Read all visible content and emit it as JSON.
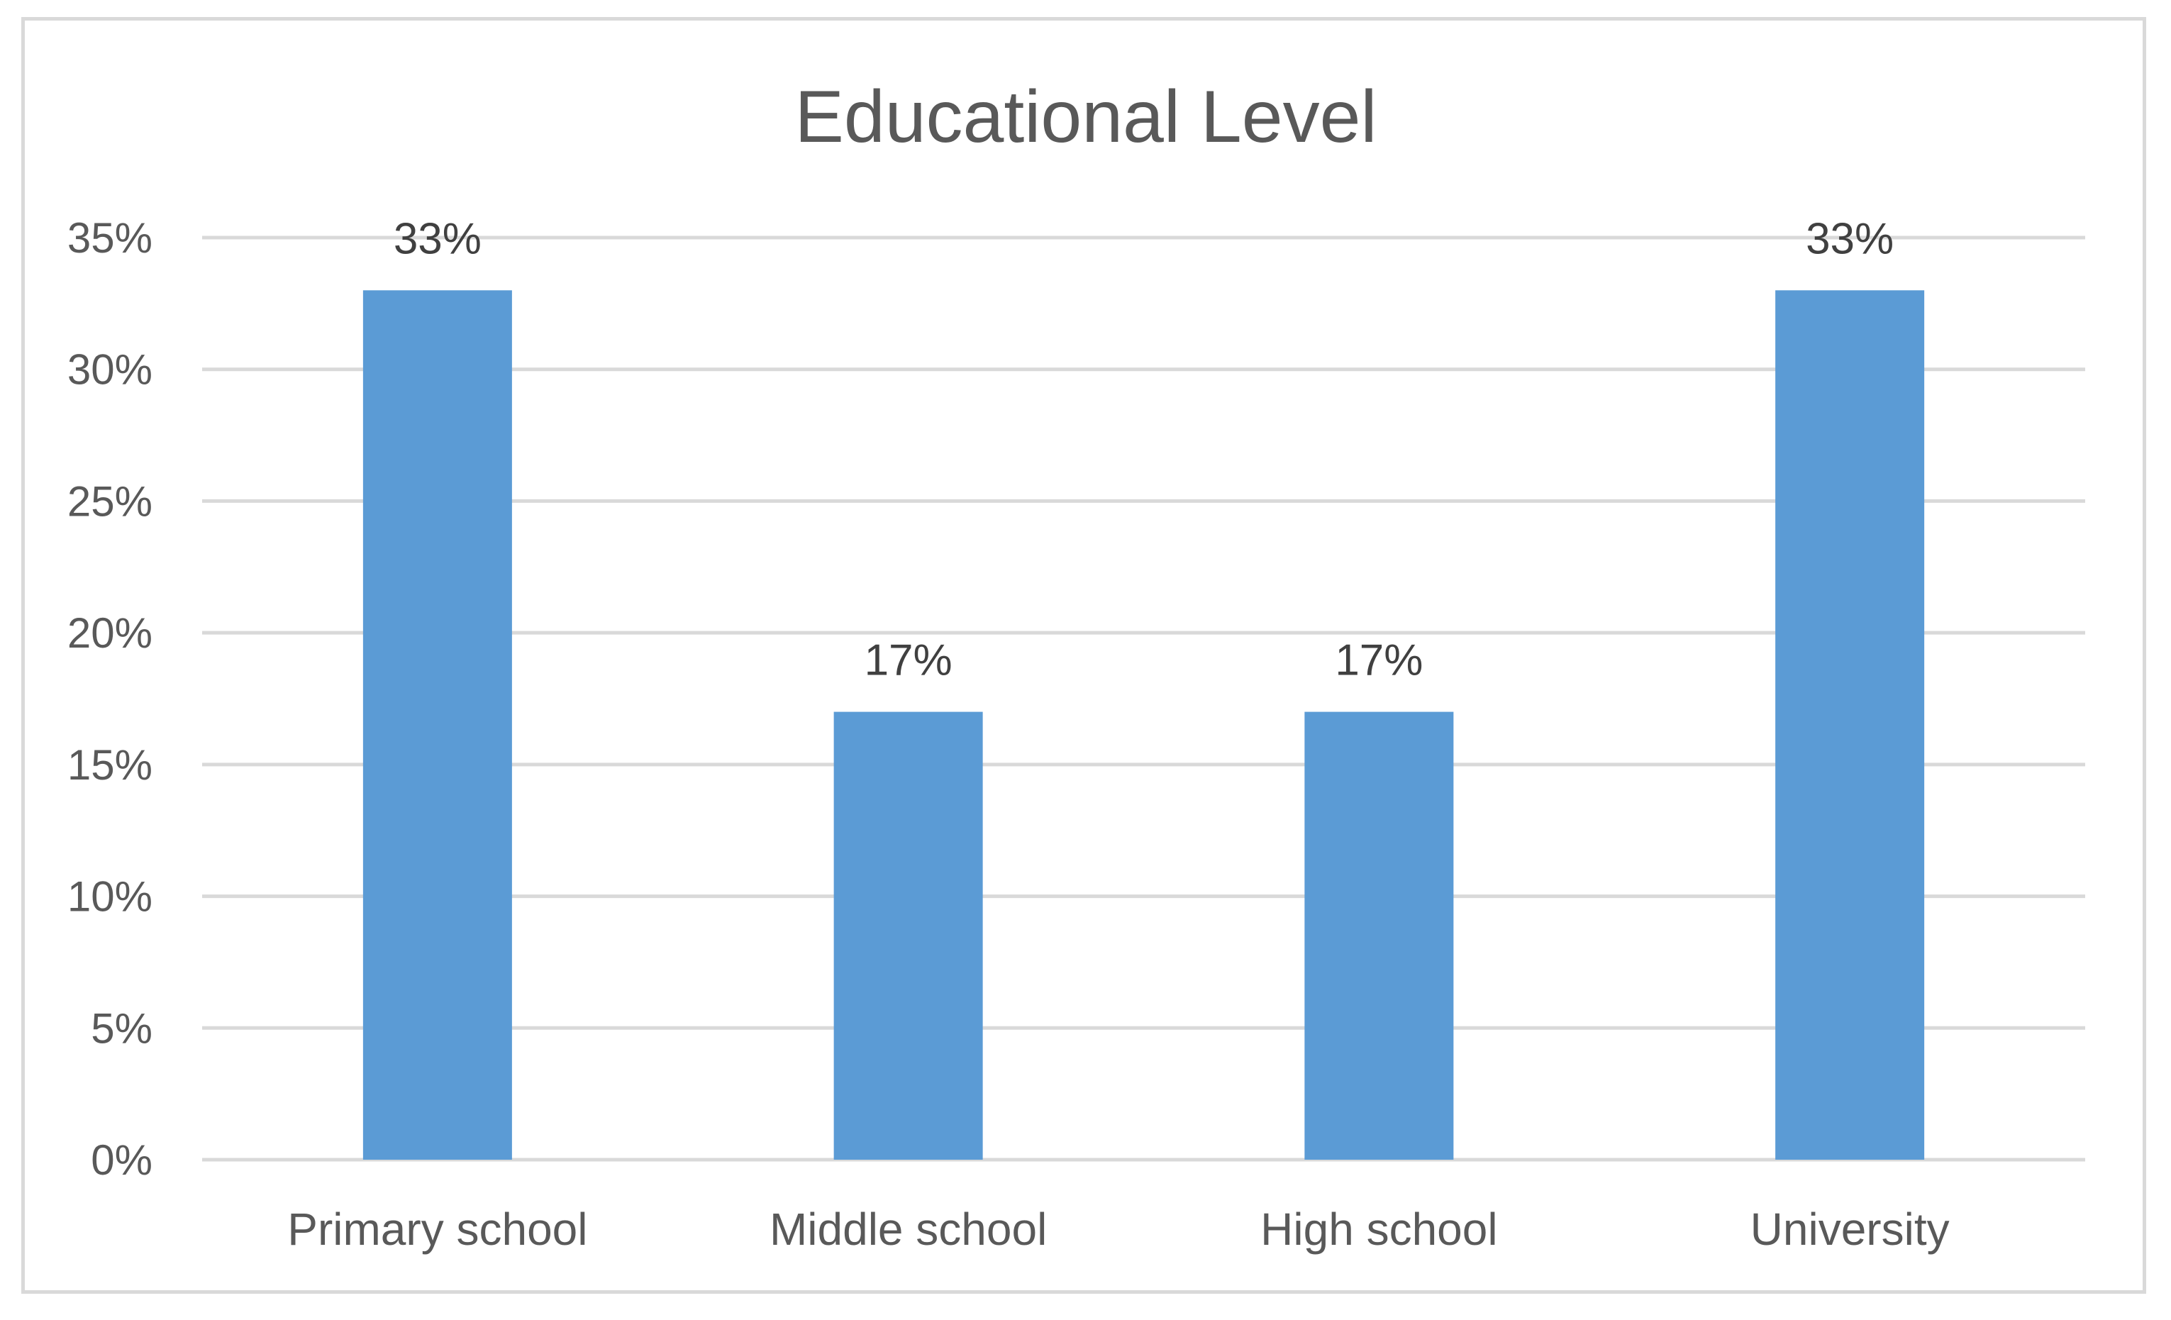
{
  "chart_data": {
    "type": "bar",
    "title": "Educational Level",
    "xlabel": "",
    "ylabel": "",
    "categories": [
      "Primary school",
      "Middle school",
      "High school",
      "University"
    ],
    "values": [
      33,
      17,
      17,
      33
    ],
    "data_labels": [
      "33%",
      "17%",
      "17%",
      "33%"
    ],
    "ylim": [
      0,
      35
    ],
    "yticks": [
      0,
      5,
      10,
      15,
      20,
      25,
      30,
      35
    ],
    "ytick_labels": [
      "0%",
      "5%",
      "10%",
      "15%",
      "20%",
      "25%",
      "30%",
      "35%"
    ],
    "grid": true,
    "legend": "none",
    "colors": {
      "bar": "#5b9bd5",
      "grid": "#d9d9d9",
      "axis_text": "#595959",
      "label_text": "#404040",
      "frame": "#d9d9d9"
    }
  }
}
